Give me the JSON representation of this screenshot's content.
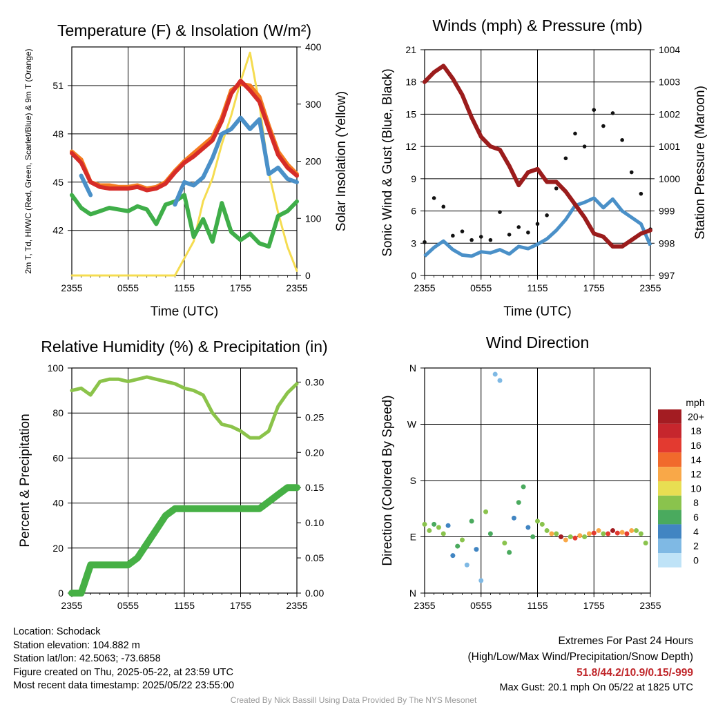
{
  "chart_data": [
    {
      "type": "line",
      "title": "Temperature (F) & Insolation (W/m²)",
      "xlabel": "Time (UTC)",
      "ylabel": "2m T, Td, HI/WC (Red, Green, Scarlet/Blue) & 9m T (Orange)",
      "ylabel2": "Solar Insolation (Yellow)",
      "x_ticks": [
        "2355",
        "0555",
        "1155",
        "1755",
        "2355"
      ],
      "ylim": [
        39.2,
        53.4
      ],
      "y_ticks": [
        42,
        45,
        48,
        51
      ],
      "y2lim": [
        0,
        400
      ],
      "y2_ticks": [
        0,
        100,
        200,
        300,
        400
      ],
      "x_hours": [
        0,
        1,
        2,
        3,
        4,
        5,
        6,
        7,
        8,
        9,
        10,
        11,
        12,
        13,
        14,
        15,
        16,
        17,
        18,
        19,
        20,
        21,
        22,
        23,
        24
      ],
      "series": [
        {
          "color": "#f47c20",
          "axis": "left",
          "values": [
            46.9,
            46.4,
            45.0,
            44.8,
            44.8,
            44.7,
            44.7,
            44.8,
            44.6,
            44.7,
            45.0,
            45.7,
            46.3,
            46.8,
            47.3,
            47.8,
            49.0,
            50.7,
            51.1,
            51.0,
            50.3,
            48.5,
            46.9,
            46.1,
            45.5
          ]
        },
        {
          "color": "#d62c28",
          "axis": "left",
          "values": [
            46.8,
            46.2,
            45.0,
            44.7,
            44.6,
            44.6,
            44.6,
            44.7,
            44.5,
            44.6,
            44.9,
            45.6,
            46.2,
            46.6,
            47.1,
            47.6,
            48.8,
            50.5,
            51.3,
            50.7,
            50.0,
            48.3,
            46.7,
            45.9,
            45.4
          ]
        },
        {
          "color": "#4a90c8",
          "axis": "left",
          "values": [
            null,
            45.4,
            44.2,
            null,
            null,
            null,
            null,
            null,
            null,
            null,
            null,
            43.6,
            45.0,
            44.8,
            45.3,
            46.5,
            48.0,
            48.3,
            49.0,
            48.3,
            48.9,
            45.5,
            45.9,
            45.2,
            45.0
          ]
        },
        {
          "color": "#3fae49",
          "axis": "left",
          "values": [
            44.2,
            43.4,
            43.0,
            43.2,
            43.4,
            43.3,
            43.2,
            43.5,
            43.3,
            42.4,
            43.6,
            43.8,
            44.2,
            41.6,
            42.7,
            41.3,
            43.7,
            41.9,
            41.4,
            41.8,
            41.2,
            41.0,
            42.9,
            43.2,
            43.8
          ]
        },
        {
          "color": "#f5dc50",
          "axis": "right",
          "values": [
            0,
            0,
            0,
            0,
            0,
            0,
            0,
            0,
            0,
            0,
            0,
            0,
            30,
            60,
            130,
            170,
            230,
            280,
            340,
            390,
            300,
            180,
            110,
            50,
            8
          ]
        }
      ]
    },
    {
      "type": "scatter",
      "title": "Winds (mph) & Pressure (mb)",
      "xlabel": "Time (UTC)",
      "ylabel": "Sonic Wind & Gust (Blue, Black)",
      "ylabel2": "Station Pressure (Maroon)",
      "x_ticks": [
        "2355",
        "0555",
        "1155",
        "1755",
        "2355"
      ],
      "ylim": [
        0,
        21
      ],
      "y_ticks": [
        0,
        3,
        6,
        9,
        12,
        15,
        18,
        21
      ],
      "y2lim": [
        997,
        1004
      ],
      "y2_ticks": [
        997,
        998,
        999,
        1000,
        1001,
        1002,
        1003,
        1004
      ],
      "x_hours": [
        0,
        1,
        2,
        3,
        4,
        5,
        6,
        7,
        8,
        9,
        10,
        11,
        12,
        13,
        14,
        15,
        16,
        17,
        18,
        19,
        20,
        21,
        22,
        23,
        24
      ],
      "series": [
        {
          "color": "#4a90c8",
          "axis": "left",
          "values": [
            1.8,
            2.6,
            3.2,
            2.4,
            1.9,
            1.8,
            2.2,
            2.1,
            2.4,
            2.0,
            2.7,
            2.5,
            2.9,
            3.4,
            4.2,
            5.2,
            6.5,
            6.8,
            7.2,
            6.3,
            7.1,
            6.0,
            5.4,
            4.8,
            2.8
          ]
        },
        {
          "color": "#111111",
          "axis": "left",
          "values": [
            3.1,
            7.2,
            6.4,
            3.7,
            4.1,
            3.3,
            3.6,
            3.3,
            5.9,
            3.8,
            4.5,
            4.0,
            4.8,
            5.6,
            8.1,
            10.9,
            13.2,
            12.0,
            15.4,
            13.9,
            15.1,
            12.6,
            9.6,
            7.6,
            4.3
          ]
        },
        {
          "color": "#9b1c1c",
          "axis": "right",
          "values": [
            1003.0,
            1003.3,
            1003.5,
            1003.1,
            1002.6,
            1001.9,
            1001.3,
            1001.0,
            1000.9,
            1000.4,
            999.8,
            1000.2,
            1000.3,
            999.9,
            999.9,
            999.6,
            999.2,
            998.8,
            998.3,
            998.2,
            997.9,
            997.9,
            998.1,
            998.3,
            998.4
          ]
        }
      ]
    },
    {
      "type": "line",
      "title": "Relative Humidity (%) & Precipitation (in)",
      "ylabel": "Percent & Precipitation",
      "x_ticks": [
        "2355",
        "0555",
        "1155",
        "1755",
        "2355"
      ],
      "ylim": [
        0,
        100
      ],
      "y_ticks": [
        0,
        20,
        40,
        60,
        80,
        100
      ],
      "y2lim": [
        0,
        0.32
      ],
      "y2_ticks": [
        "0.00",
        "0.05",
        "0.10",
        "0.15",
        "0.20",
        "0.25",
        "0.30"
      ],
      "x_hours": [
        0,
        1,
        2,
        3,
        4,
        5,
        6,
        7,
        8,
        9,
        10,
        11,
        12,
        13,
        14,
        15,
        16,
        17,
        18,
        19,
        20,
        21,
        22,
        23,
        24
      ],
      "series": [
        {
          "color": "#8bc34a",
          "axis": "left",
          "values": [
            90,
            91,
            88,
            94,
            95,
            95,
            94,
            95,
            96,
            95,
            94,
            93,
            91,
            90,
            88,
            80,
            75,
            74,
            72,
            69,
            69,
            72,
            83,
            89,
            93
          ]
        },
        {
          "color": "#46b045",
          "axis": "right",
          "values": [
            0,
            0,
            0.04,
            0.04,
            0.04,
            0.04,
            0.04,
            0.05,
            0.07,
            0.09,
            0.11,
            0.12,
            0.12,
            0.12,
            0.12,
            0.12,
            0.12,
            0.12,
            0.12,
            0.12,
            0.12,
            0.13,
            0.14,
            0.15,
            0.15
          ]
        }
      ]
    },
    {
      "type": "scatter",
      "title": "Wind Direction",
      "ylabel": "Direction (Colored By Speed)",
      "x_ticks": [
        "2355",
        "0555",
        "1155",
        "1755",
        "2355"
      ],
      "y_ticks": [
        "N",
        "E",
        "S",
        "W",
        "N"
      ],
      "ylim": [
        0,
        360
      ],
      "colorbar": {
        "unit": "mph",
        "labels": [
          "20+",
          "18",
          "16",
          "14",
          "12",
          "10",
          "8",
          "6",
          "4",
          "2",
          "0"
        ],
        "colors": [
          "#a31c22",
          "#c6262d",
          "#e33a30",
          "#f16a2c",
          "#f9a848",
          "#e8de52",
          "#8ac34d",
          "#4aaa5e",
          "#4185c2",
          "#7fb9e4",
          "#bfe3f7"
        ]
      },
      "x_hours": [
        0,
        0.5,
        1,
        1.5,
        2,
        2.5,
        3,
        3.5,
        4,
        4.5,
        5,
        5.5,
        6,
        6.5,
        7,
        7.5,
        8,
        8.5,
        9,
        9.5,
        10,
        10.5,
        11,
        11.5,
        12,
        12.5,
        13,
        13.5,
        14,
        14.5,
        15,
        15.5,
        16,
        16.5,
        17,
        17.5,
        18,
        18.5,
        19,
        19.5,
        20,
        20.5,
        21,
        21.5,
        22,
        22.5,
        23,
        23.5
      ],
      "directions": [
        110,
        100,
        110,
        105,
        95,
        108,
        60,
        75,
        85,
        45,
        115,
        70,
        20,
        130,
        95,
        350,
        340,
        80,
        65,
        120,
        145,
        170,
        105,
        90,
        115,
        110,
        100,
        95,
        95,
        90,
        85,
        90,
        88,
        92,
        90,
        95,
        96,
        100,
        95,
        95,
        100,
        96,
        97,
        95,
        100,
        100,
        95,
        80
      ],
      "speeds": [
        4,
        4,
        3,
        4,
        4,
        2,
        2,
        3,
        4,
        1,
        3,
        2,
        1,
        4,
        3,
        1,
        1,
        4,
        3,
        2,
        3,
        3,
        2,
        3,
        4,
        4,
        4,
        6,
        4,
        10,
        6,
        4,
        8,
        6,
        4,
        6,
        8,
        6,
        4,
        8,
        10,
        8,
        6,
        8,
        6,
        4,
        4,
        4
      ]
    }
  ],
  "info": {
    "location": "Location: Schodack",
    "elevation": "Station elevation: 104.882 m",
    "latlon": "Station lat/lon: 42.5063; -73.6858",
    "created": "Figure created on Thu, 2025-05-22, at 23:59 UTC",
    "recent": "Most recent data timestamp: 2025/05/22 23:55:00"
  },
  "extremes": {
    "title": "Extremes For Past 24 Hours",
    "subtitle": "(High/Low/Max Wind/Precipitation/Snow Depth)",
    "values": "51.8/44.2/10.9/0.15/-999",
    "gust": "Max Gust: 20.1 mph On 05/22 at 1825 UTC"
  },
  "credit": "Created By Nick Bassill Using Data Provided By The NYS Mesonet"
}
